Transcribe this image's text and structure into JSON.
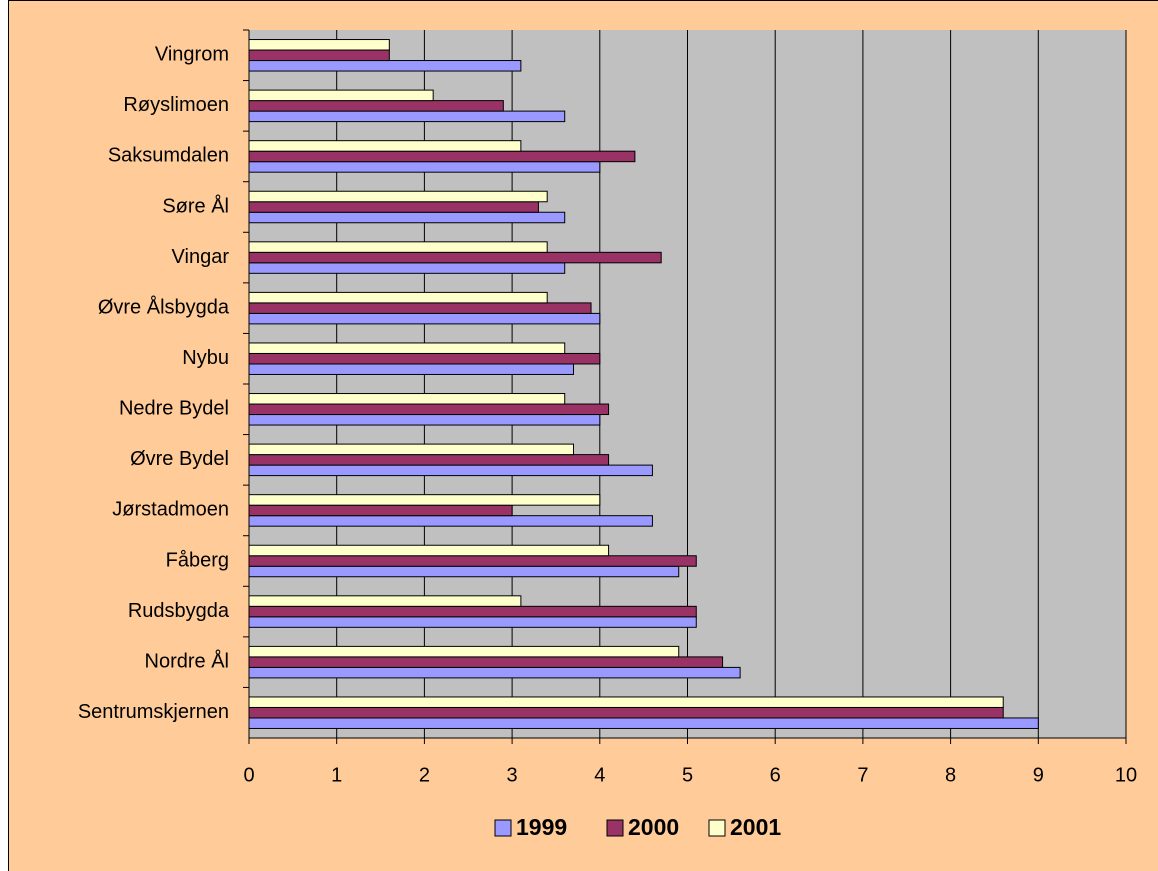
{
  "chart_data": {
    "type": "bar",
    "orientation": "horizontal",
    "categories": [
      "Vingrom",
      "Røyslimoen",
      "Saksumdalen",
      "Søre Ål",
      "Vingar",
      "Øvre Ålsbygda",
      "Nybu",
      "Nedre Bydel",
      "Øvre Bydel",
      "Jørstadmoen",
      "Fåberg",
      "Rudsbygda",
      "Nordre Ål",
      "Sentrumskjernen"
    ],
    "series": [
      {
        "name": "1999",
        "color": "#9999ff",
        "values": [
          3.1,
          3.6,
          4.0,
          3.6,
          3.6,
          4.0,
          3.7,
          4.0,
          4.6,
          4.6,
          4.9,
          5.1,
          5.6,
          9.0
        ]
      },
      {
        "name": "2000",
        "color": "#993366",
        "values": [
          1.6,
          2.9,
          4.4,
          3.3,
          4.7,
          3.9,
          4.0,
          4.1,
          4.1,
          3.0,
          5.1,
          5.1,
          5.4,
          8.6
        ]
      },
      {
        "name": "2001",
        "color": "#ffffcc",
        "values": [
          1.6,
          2.1,
          3.1,
          3.4,
          3.4,
          3.4,
          3.6,
          3.6,
          3.7,
          4.0,
          4.1,
          3.1,
          4.9,
          8.6
        ]
      }
    ],
    "xlim": [
      0,
      10
    ],
    "xticks": [
      0,
      1,
      2,
      3,
      4,
      5,
      6,
      7,
      8,
      9,
      10
    ],
    "grid": true,
    "legend": "bottom"
  }
}
